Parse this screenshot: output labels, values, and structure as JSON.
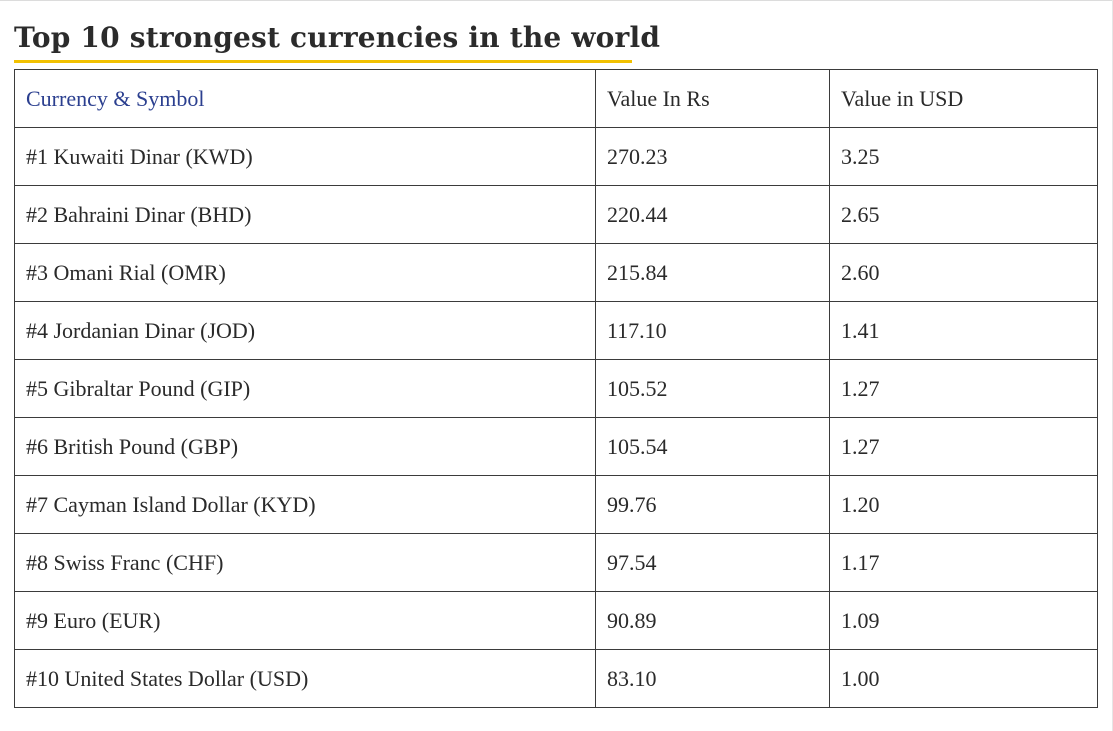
{
  "title": "Top 10 strongest currencies in the world",
  "colors": {
    "title_underline": "#f2c100",
    "header_first_col": "#2b3f8f",
    "border": "#3b3b3b"
  },
  "table": {
    "headers": [
      "Currency & Symbol",
      "Value In Rs",
      "Value in USD"
    ],
    "rows": [
      {
        "currency": "#1 Kuwaiti Dinar (KWD)",
        "value_rs": "270.23",
        "value_usd": "3.25"
      },
      {
        "currency": "#2 Bahraini Dinar (BHD)",
        "value_rs": "220.44",
        "value_usd": "2.65"
      },
      {
        "currency": "#3 Omani Rial (OMR)",
        "value_rs": "215.84",
        "value_usd": "2.60"
      },
      {
        "currency": "#4 Jordanian Dinar (JOD)",
        "value_rs": "117.10",
        "value_usd": "1.41"
      },
      {
        "currency": "#5 Gibraltar Pound (GIP)",
        "value_rs": "105.52",
        "value_usd": "1.27"
      },
      {
        "currency": "#6 British Pound (GBP)",
        "value_rs": "105.54",
        "value_usd": "1.27"
      },
      {
        "currency": "#7 Cayman Island Dollar (KYD)",
        "value_rs": "99.76",
        "value_usd": "1.20"
      },
      {
        "currency": "#8 Swiss Franc (CHF)",
        "value_rs": "97.54",
        "value_usd": "1.17"
      },
      {
        "currency": "#9 Euro (EUR)",
        "value_rs": "90.89",
        "value_usd": "1.09"
      },
      {
        "currency": "#10 United States Dollar (USD)",
        "value_rs": "83.10",
        "value_usd": "1.00"
      }
    ]
  }
}
